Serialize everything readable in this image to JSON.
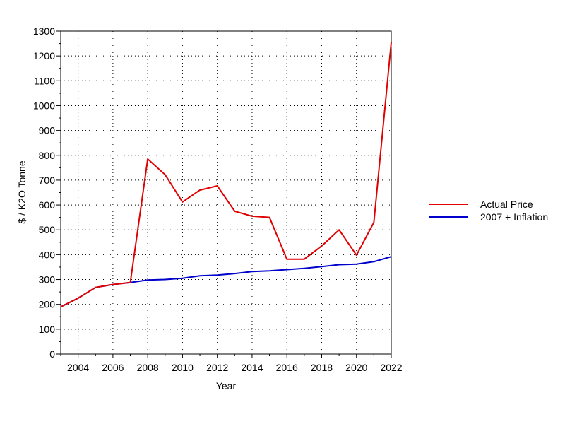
{
  "chart_data": {
    "type": "line",
    "xlabel": "Year",
    "ylabel": "$ / K2O Tonne",
    "xlim": [
      2003,
      2022
    ],
    "ylim": [
      0,
      1300
    ],
    "x_ticks": [
      2004,
      2006,
      2008,
      2010,
      2012,
      2014,
      2016,
      2018,
      2020,
      2022
    ],
    "y_ticks": [
      0,
      100,
      200,
      300,
      400,
      500,
      600,
      700,
      800,
      900,
      1000,
      1100,
      1200,
      1300
    ],
    "x_tick_labels": [
      "2004",
      "2006",
      "2008",
      "2010",
      "2012",
      "2014",
      "2016",
      "2018",
      "2020",
      "2022"
    ],
    "y_tick_labels": [
      "0",
      "100",
      "200",
      "300",
      "400",
      "500",
      "600",
      "700",
      "800",
      "900",
      "1000",
      "1100",
      "1200",
      "1300"
    ],
    "grid": true,
    "legend_position": "right",
    "x": [
      2003,
      2004,
      2005,
      2006,
      2007,
      2008,
      2009,
      2010,
      2011,
      2012,
      2013,
      2014,
      2015,
      2016,
      2017,
      2018,
      2019,
      2020,
      2021,
      2022
    ],
    "series": [
      {
        "name": "Actual Price",
        "color": "#e00000",
        "values": [
          190,
          225,
          268,
          280,
          288,
          785,
          722,
          612,
          660,
          677,
          575,
          555,
          550,
          382,
          382,
          435,
          500,
          398,
          530,
          1255
        ]
      },
      {
        "name": "2007 + Inflation",
        "color": "#0000cc",
        "values": [
          190,
          225,
          268,
          280,
          288,
          298,
          300,
          305,
          315,
          318,
          324,
          332,
          335,
          340,
          345,
          352,
          360,
          362,
          372,
          392
        ]
      }
    ]
  }
}
